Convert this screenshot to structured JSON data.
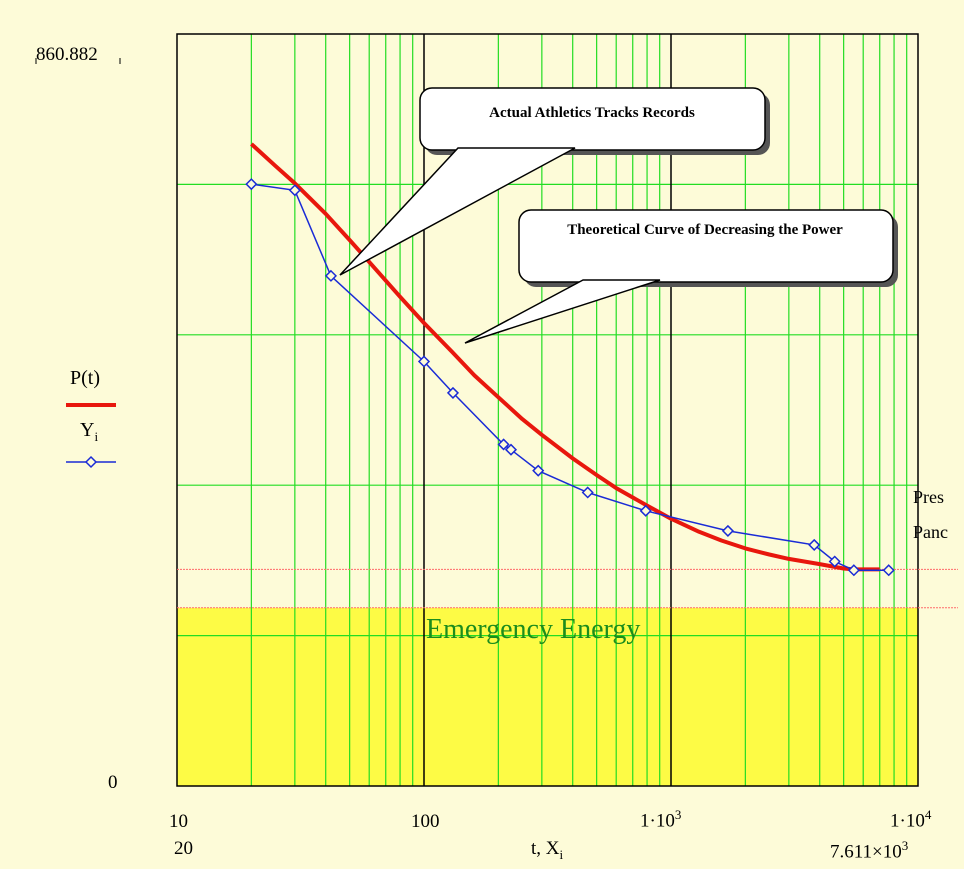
{
  "chart_data": {
    "type": "line",
    "xscale": "log",
    "xlim": [
      10,
      10000
    ],
    "ylim": [
      0,
      860.882
    ],
    "y_top_label": "860.882",
    "y_bottom_label": "0",
    "x_tick_labels": [
      "10",
      "100",
      "1·10",
      "1·10"
    ],
    "x_tick_exponents": [
      "",
      "",
      "3",
      "4"
    ],
    "x_min_marker": "20",
    "x_max_marker": "7.611×10",
    "x_max_marker_exp": "3",
    "xlabel": "t, X",
    "xlabel_sub": "i",
    "grid": true,
    "legend": [
      {
        "name": "P(t)",
        "color": "#e8170d",
        "style": "thick-line"
      },
      {
        "name": "Y",
        "sub": "i",
        "color": "#1a2bd6",
        "style": "line-diamond"
      }
    ],
    "series": [
      {
        "name": "P(t)",
        "color": "#e8170d",
        "x": [
          20,
          25,
          30,
          40,
          50,
          60,
          80,
          100,
          130,
          160,
          200,
          250,
          300,
          400,
          500,
          600,
          800,
          1000,
          1300,
          1600,
          2000,
          2500,
          3000,
          4000,
          5000,
          5500,
          6000,
          7000
        ],
        "y": [
          735,
          710,
          690,
          655,
          625,
          600,
          560,
          530,
          497,
          470,
          445,
          420,
          402,
          375,
          356,
          341,
          321,
          306,
          291,
          281,
          272,
          265,
          260,
          254,
          249,
          248,
          248,
          248
        ]
      },
      {
        "name": "Y",
        "color": "#1a2bd6",
        "x": [
          20,
          30,
          42,
          100,
          131,
          210,
          225,
          290,
          460,
          790,
          1700,
          3800,
          4600,
          5500,
          7611
        ],
        "y": [
          689,
          682,
          584,
          486,
          450,
          391,
          385,
          361,
          336,
          315,
          292,
          276,
          257,
          247,
          247
        ]
      }
    ],
    "reference_lines": [
      {
        "label": "Pres",
        "y": 248,
        "color": "#ff6a6a"
      },
      {
        "label": "Panc",
        "y": 204,
        "color": "#ff6a6a"
      }
    ],
    "shaded_region": {
      "label": "Emergency Energy",
      "y_from": 0,
      "y_to": 204,
      "color": "#fdfb45",
      "text_color": "#1c8c1c"
    },
    "annotations": [
      {
        "text": "Actual Athletics Tracks Records"
      },
      {
        "text": "Theoretical Curve of Decreasing the Power"
      }
    ]
  }
}
